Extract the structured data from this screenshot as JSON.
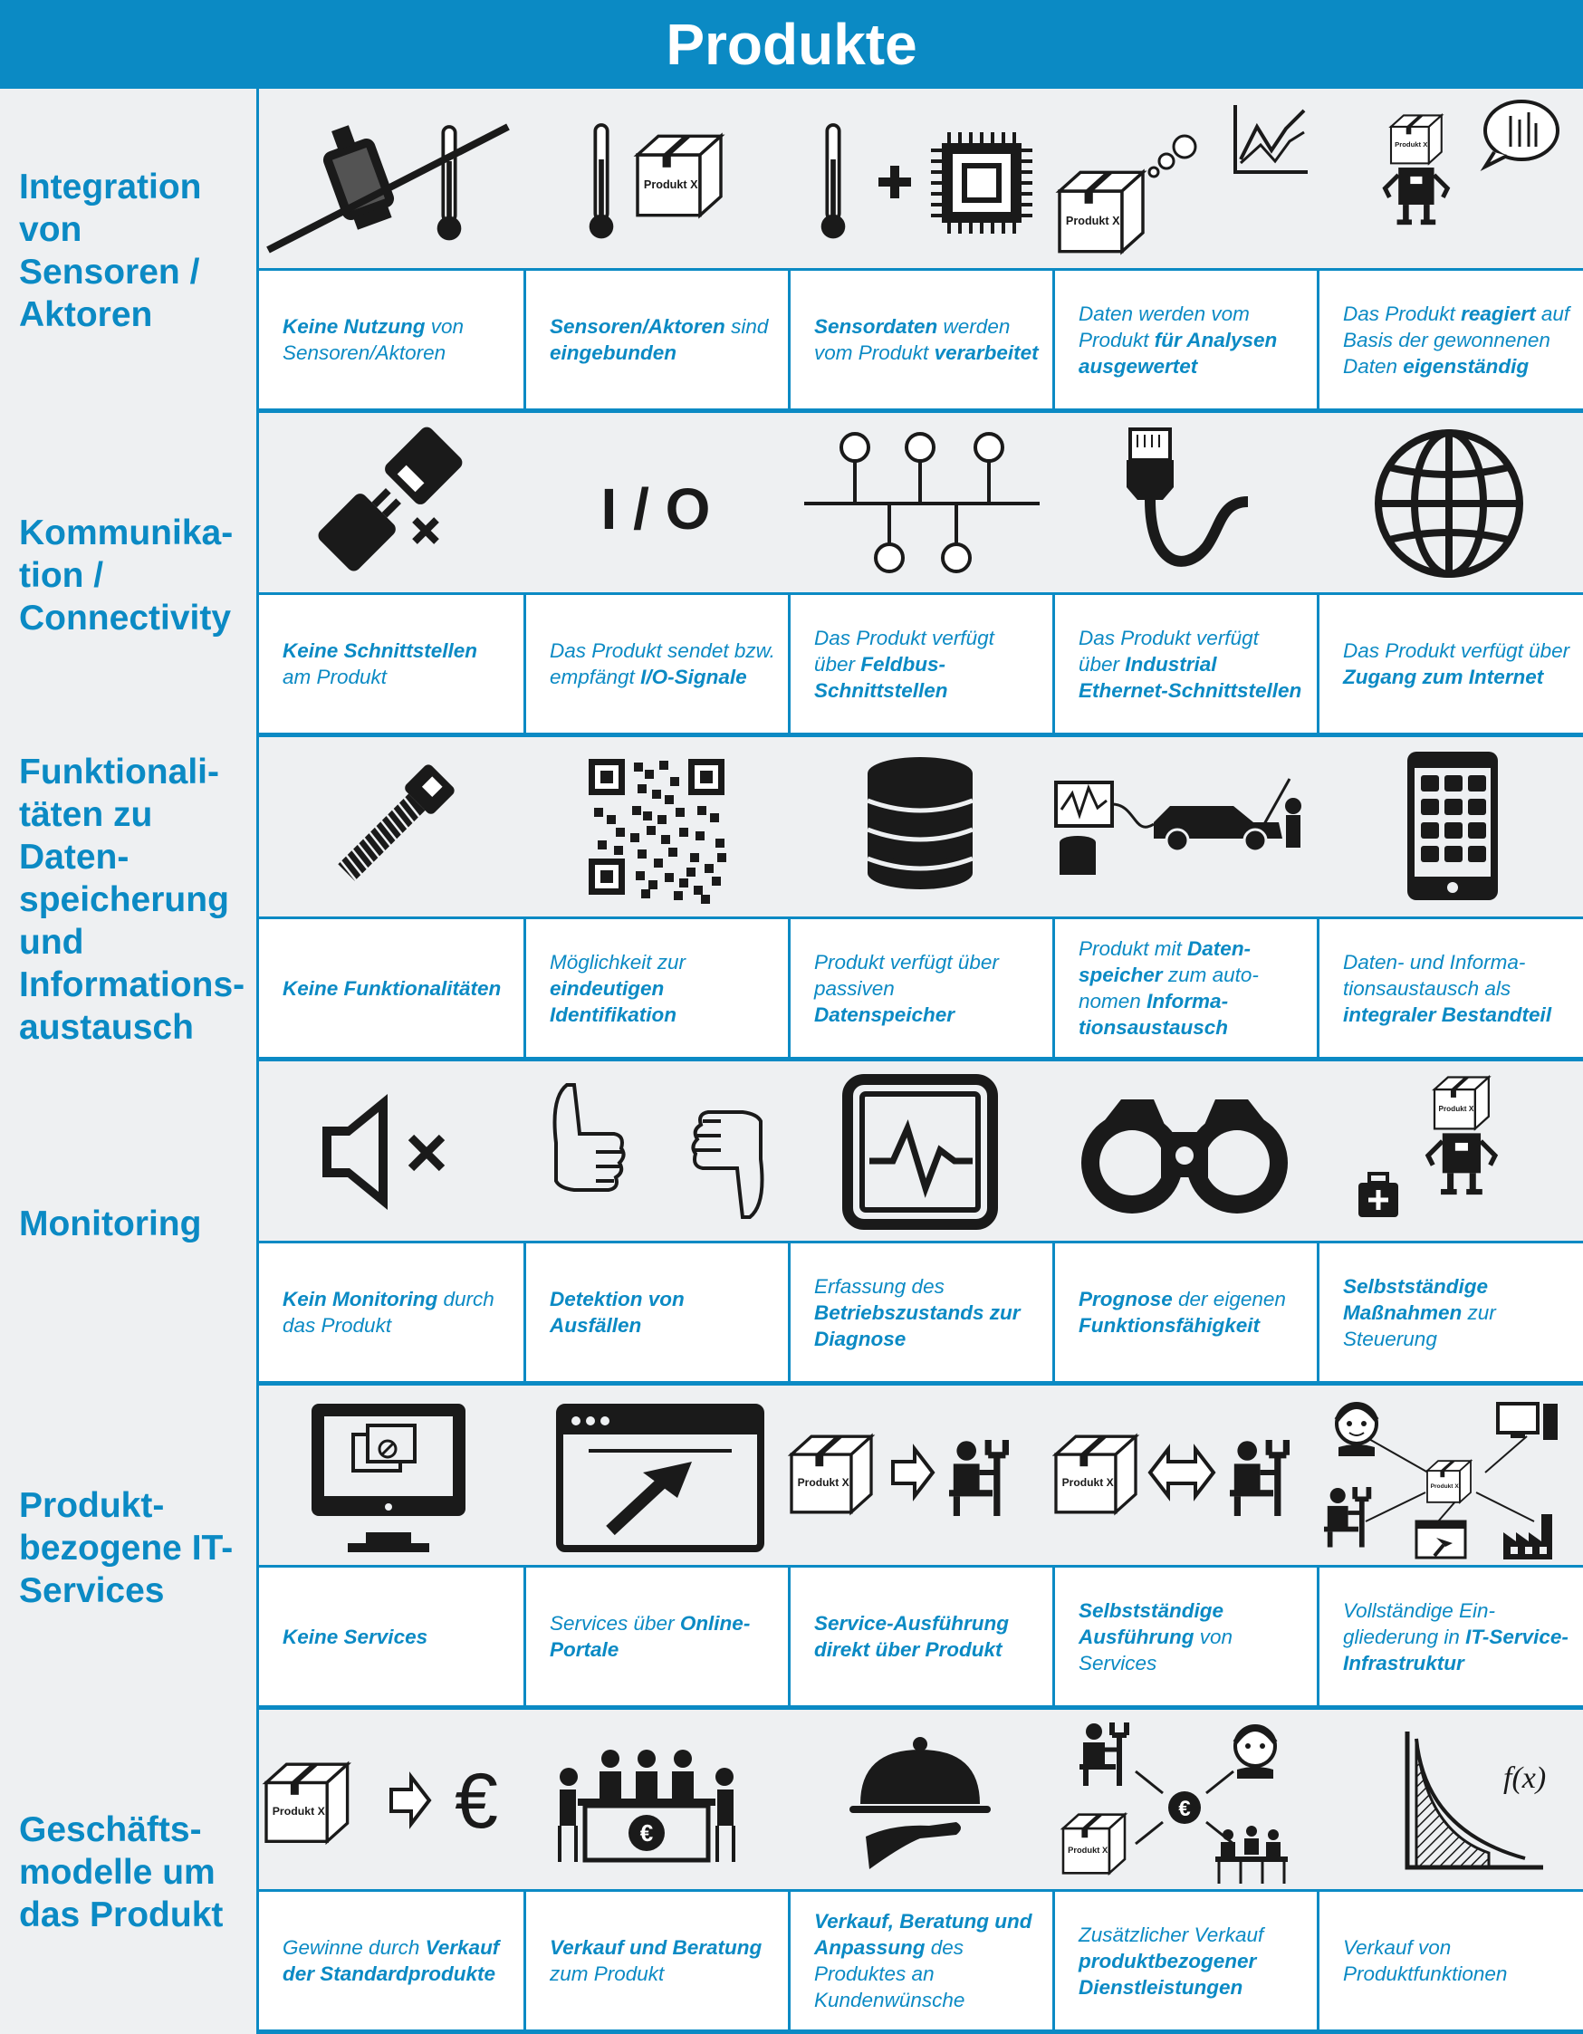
{
  "title": "Produkte",
  "rows": [
    {
      "category": "Integration von Sensoren / Aktoren",
      "icons": [
        "motor-thermometer-crossed-icon",
        "thermometer-product-icon",
        "thermometer-plus-chip-icon",
        "product-thinking-chart-icon",
        "robot-product-speech-icon"
      ],
      "cells": [
        [
          {
            "t": "Keine Nutzung",
            "b": true
          },
          {
            "t": " von Sensoren/Aktoren",
            "b": false
          }
        ],
        [
          {
            "t": "Sensoren/Aktoren",
            "b": true
          },
          {
            "t": " sind ",
            "b": false
          },
          {
            "t": "eingebunden",
            "b": true
          }
        ],
        [
          {
            "t": "Sensordaten",
            "b": true
          },
          {
            "t": " werden vom Produkt ",
            "b": false
          },
          {
            "t": "verarbeitet",
            "b": true
          }
        ],
        [
          {
            "t": "Daten werden vom Produkt ",
            "b": false
          },
          {
            "t": "für Analysen ausgewertet",
            "b": true
          }
        ],
        [
          {
            "t": "Das Produkt ",
            "b": false
          },
          {
            "t": "reagiert",
            "b": true
          },
          {
            "t": " auf Basis der gewonnenen Daten ",
            "b": false
          },
          {
            "t": "eigenständig",
            "b": true
          }
        ]
      ]
    },
    {
      "category": "Kommunika-tion / Connectivity",
      "icons": [
        "unplugged-connector-icon",
        "io-text-icon",
        "fieldbus-network-icon",
        "ethernet-cable-icon",
        "globe-icon"
      ],
      "io_label": "I / O",
      "cells": [
        [
          {
            "t": "Keine Schnittstellen",
            "b": true
          },
          {
            "t": " am Produkt",
            "b": false
          }
        ],
        [
          {
            "t": "Das Produkt sendet bzw. empfängt ",
            "b": false
          },
          {
            "t": "I/O-Signale",
            "b": true
          }
        ],
        [
          {
            "t": "Das Produkt verfügt über ",
            "b": false
          },
          {
            "t": "Feldbus-Schnittstellen",
            "b": true
          }
        ],
        [
          {
            "t": "Das Produkt verfügt über ",
            "b": false
          },
          {
            "t": "Industrial Ethernet-Schnittstellen",
            "b": true
          }
        ],
        [
          {
            "t": "Das Produkt verfügt über ",
            "b": false
          },
          {
            "t": "Zugang zum Internet",
            "b": true
          }
        ]
      ]
    },
    {
      "category": "Funktionali-täten zu Daten-speicherung und Informations-austausch",
      "icons": [
        "screw-icon",
        "qr-code-icon",
        "database-icon",
        "diagnostic-car-icon",
        "smartphone-icon"
      ],
      "cells": [
        [
          {
            "t": "Keine Funktionalitäten",
            "b": true
          }
        ],
        [
          {
            "t": "Möglichkeit zur ",
            "b": false
          },
          {
            "t": "eindeutigen Identifikation",
            "b": true
          }
        ],
        [
          {
            "t": "Produkt verfügt über passiven ",
            "b": false
          },
          {
            "t": "Datenspeicher",
            "b": true
          }
        ],
        [
          {
            "t": "Produkt mit ",
            "b": false
          },
          {
            "t": "Daten-speicher",
            "b": true
          },
          {
            "t": " zum auto-nomen ",
            "b": false
          },
          {
            "t": "Informa-tionsaustausch",
            "b": true
          }
        ],
        [
          {
            "t": "Daten- und Informa-tionsaustausch als ",
            "b": false
          },
          {
            "t": "integraler Bestandteil",
            "b": true
          }
        ]
      ]
    },
    {
      "category": "Monitoring",
      "icons": [
        "speaker-muted-icon",
        "thumbs-up-down-icon",
        "monitor-pulse-icon",
        "binoculars-icon",
        "robot-first-aid-icon"
      ],
      "cells": [
        [
          {
            "t": "Kein Monitoring",
            "b": true
          },
          {
            "t": " durch das Produkt",
            "b": false
          }
        ],
        [
          {
            "t": "Detektion von Ausfällen",
            "b": true
          }
        ],
        [
          {
            "t": "Erfassung des ",
            "b": false
          },
          {
            "t": "Betriebszustands zur Diagnose",
            "b": true
          }
        ],
        [
          {
            "t": "Prognose",
            "b": true
          },
          {
            "t": " der eigenen ",
            "b": false
          },
          {
            "t": "Funktionsfähigkeit",
            "b": true
          }
        ],
        [
          {
            "t": "Selbstständige Maßnahmen",
            "b": true
          },
          {
            "t": " zur Steuerung",
            "b": false
          }
        ]
      ]
    },
    {
      "category": "Produkt-bezogene IT-Services",
      "icons": [
        "monitor-no-service-icon",
        "browser-cursor-icon",
        "product-arrow-technician-icon",
        "product-double-arrow-technician-icon",
        "service-network-icon"
      ],
      "cells": [
        [
          {
            "t": "Keine Services",
            "b": true
          }
        ],
        [
          {
            "t": "Services über ",
            "b": false
          },
          {
            "t": "Online-Portale",
            "b": true
          }
        ],
        [
          {
            "t": "Service-Ausführung direkt über Produkt",
            "b": true
          }
        ],
        [
          {
            "t": "Selbstständige Ausführung",
            "b": true
          },
          {
            "t": " von Services",
            "b": false
          }
        ],
        [
          {
            "t": "Vollständige Ein-gliederung in ",
            "b": false
          },
          {
            "t": "IT-Service-Infrastruktur",
            "b": true
          }
        ]
      ]
    },
    {
      "category": "Geschäfts-modelle um das Produkt",
      "icons": [
        "product-arrow-euro-icon",
        "meeting-euro-icon",
        "serving-cloche-icon",
        "euro-network-icon",
        "function-graph-icon"
      ],
      "product_label": "Produkt X",
      "fx_label": "f(x)",
      "cells": [
        [
          {
            "t": "Gewinne durch ",
            "b": false
          },
          {
            "t": "Verkauf der Standardprodukte",
            "b": true
          }
        ],
        [
          {
            "t": "Verkauf und Beratung",
            "b": true
          },
          {
            "t": " zum Produkt",
            "b": false
          }
        ],
        [
          {
            "t": "Verkauf, Beratung und Anpassung",
            "b": true
          },
          {
            "t": " des Produktes an Kundenwünsche",
            "b": false
          }
        ],
        [
          {
            "t": "Zusätzlicher Verkauf ",
            "b": false
          },
          {
            "t": "produktbezogener Dienstleistungen",
            "b": true
          }
        ],
        [
          {
            "t": "Verkauf von Produktfunktionen",
            "b": false
          }
        ]
      ]
    }
  ],
  "colors": {
    "accent": "#0b8ac4",
    "background": "#eef0f2",
    "icon": "#1a1a1a"
  }
}
